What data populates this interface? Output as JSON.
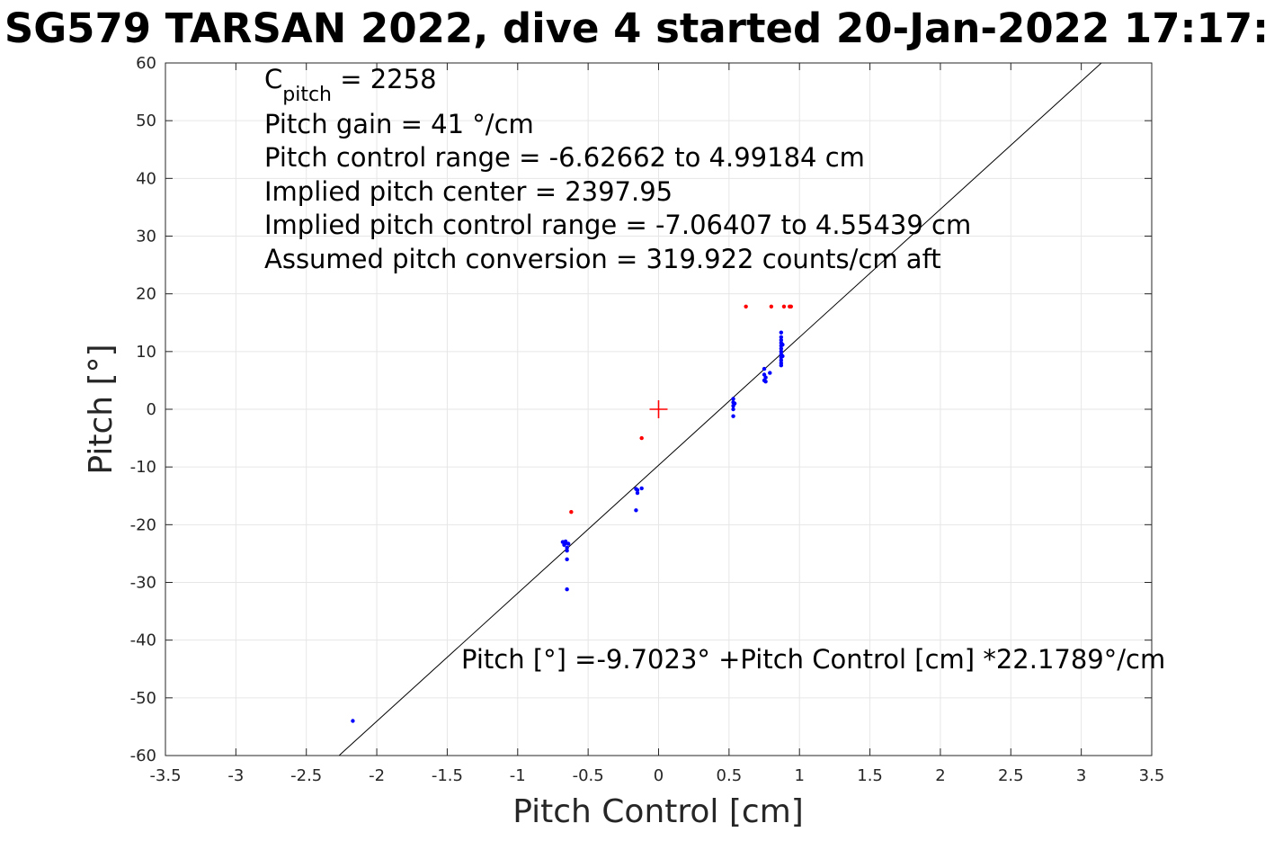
{
  "chart_data": {
    "type": "scatter",
    "title": "SG579 TARSAN 2022, dive 4 started 20-Jan-2022 17:17:",
    "xlabel": "Pitch Control [cm]",
    "ylabel": "Pitch [°]",
    "xlim": [
      -3.5,
      3.5
    ],
    "ylim": [
      -60,
      60
    ],
    "xticks": [
      -3.5,
      -3,
      -2.5,
      -2,
      -1.5,
      -1,
      -0.5,
      0,
      0.5,
      1,
      1.5,
      2,
      2.5,
      3,
      3.5
    ],
    "xtick_labels": [
      "-3.5",
      "-3",
      "-2.5",
      "-2",
      "-1.5",
      "-1",
      "-0.5",
      "0",
      "0.5",
      "1",
      "1.5",
      "2",
      "2.5",
      "3",
      "3.5"
    ],
    "yticks": [
      -60,
      -50,
      -40,
      -30,
      -20,
      -10,
      0,
      10,
      20,
      30,
      40,
      50,
      60
    ],
    "ytick_labels": [
      "-60",
      "-50",
      "-40",
      "-30",
      "-20",
      "-10",
      "0",
      "10",
      "20",
      "30",
      "40",
      "50",
      "60"
    ],
    "grid": true,
    "series": [
      {
        "color": "#0000ff",
        "points": [
          [
            -2.17,
            -54.0
          ],
          [
            -0.68,
            -23.0
          ],
          [
            -0.67,
            -23.5
          ],
          [
            -0.66,
            -23.2
          ],
          [
            -0.65,
            -24.0
          ],
          [
            -0.65,
            -24.5
          ],
          [
            -0.64,
            -23.3
          ],
          [
            -0.66,
            -22.9
          ],
          [
            -0.65,
            -26.0
          ],
          [
            -0.65,
            -31.2
          ],
          [
            -0.15,
            -14.0
          ],
          [
            -0.15,
            -14.5
          ],
          [
            -0.16,
            -13.8
          ],
          [
            -0.12,
            -13.7
          ],
          [
            -0.16,
            -17.5
          ],
          [
            0.53,
            1.8
          ],
          [
            0.53,
            1.2
          ],
          [
            0.53,
            0.6
          ],
          [
            0.53,
            0.0
          ],
          [
            0.54,
            1.0
          ],
          [
            0.53,
            -1.2
          ],
          [
            0.75,
            7.0
          ],
          [
            0.75,
            6.0
          ],
          [
            0.76,
            5.5
          ],
          [
            0.75,
            5.0
          ],
          [
            0.76,
            4.8
          ],
          [
            0.79,
            6.3
          ],
          [
            0.87,
            13.3
          ],
          [
            0.87,
            12.5
          ],
          [
            0.87,
            12.0
          ],
          [
            0.87,
            11.5
          ],
          [
            0.87,
            11.0
          ],
          [
            0.87,
            10.5
          ],
          [
            0.87,
            10.0
          ],
          [
            0.87,
            9.5
          ],
          [
            0.87,
            9.0
          ],
          [
            0.87,
            8.5
          ],
          [
            0.87,
            8.0
          ],
          [
            0.87,
            7.6
          ],
          [
            0.88,
            11.2
          ],
          [
            0.88,
            9.2
          ]
        ]
      },
      {
        "color": "#ff0000",
        "points": [
          [
            -0.62,
            -17.8
          ],
          [
            -0.12,
            -5.0
          ],
          [
            0.62,
            17.8
          ],
          [
            0.8,
            17.8
          ],
          [
            0.89,
            17.8
          ],
          [
            0.93,
            17.8
          ],
          [
            0.94,
            17.8
          ]
        ]
      }
    ],
    "center_marker": {
      "x": 0,
      "y": 0,
      "color": "#ff0000",
      "symbol": "+"
    },
    "fit_line": {
      "intercept": -9.7023,
      "slope": 22.1789,
      "color": "#000000"
    },
    "annotations": {
      "c_pitch_main": "C",
      "c_pitch_sub": "pitch",
      "c_pitch_value": " = 2258",
      "lines": [
        "Pitch gain = 41 °/cm",
        "Pitch control range = -6.62662 to 4.99184 cm",
        "Implied pitch center = 2397.95",
        "Implied pitch control range = -7.06407 to 4.55439 cm",
        "Assumed pitch conversion = 319.922 counts/cm aft"
      ],
      "fit_equation": "Pitch [°] =-9.7023° +Pitch Control [cm] *22.1789°/cm"
    }
  }
}
